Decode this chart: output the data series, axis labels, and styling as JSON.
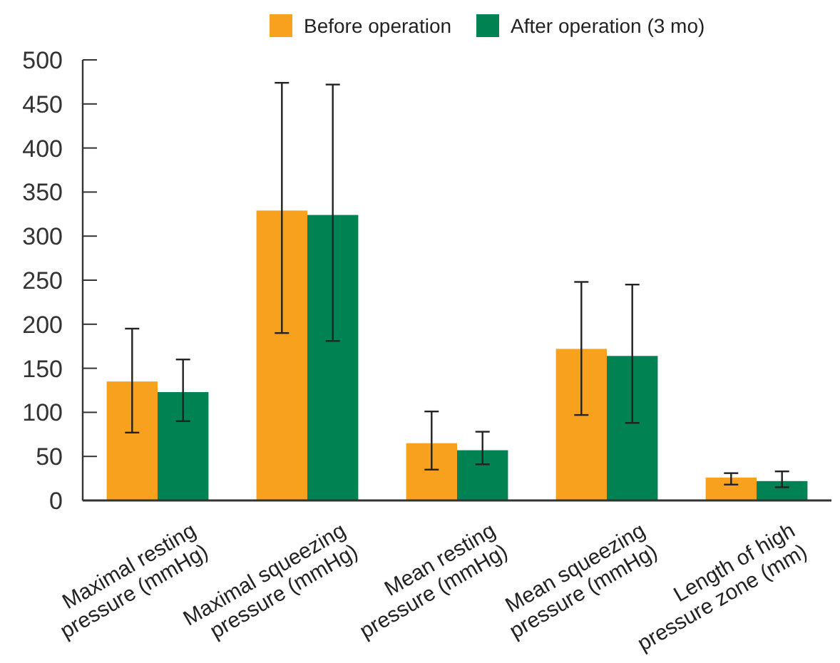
{
  "chart_data": {
    "type": "bar",
    "categories": [
      "Maximal resting\npressure (mmHg)",
      "Maximal squeezing\npressure (mmHg)",
      "Mean resting\npressure (mmHg)",
      "Mean squeezing\npressure (mmHg)",
      "Length of high\npressure zone (mm)"
    ],
    "series": [
      {
        "name": "Before operation",
        "color": "#f7a11e",
        "values": [
          135,
          329,
          65,
          172,
          26
        ],
        "errors": [
          [
            77,
            195
          ],
          [
            190,
            474
          ],
          [
            35,
            101
          ],
          [
            97,
            248
          ],
          [
            18,
            31
          ]
        ]
      },
      {
        "name": "After operation (3 mo)",
        "color": "#008253",
        "values": [
          123,
          324,
          57,
          164,
          22
        ],
        "errors": [
          [
            90,
            160
          ],
          [
            181,
            472
          ],
          [
            41,
            78
          ],
          [
            88,
            245
          ],
          [
            15,
            33
          ]
        ]
      }
    ],
    "ylim": [
      0,
      500
    ],
    "yticks": [
      0,
      50,
      100,
      150,
      200,
      250,
      300,
      350,
      400,
      450,
      500
    ],
    "grid": false,
    "legend": "top"
  }
}
